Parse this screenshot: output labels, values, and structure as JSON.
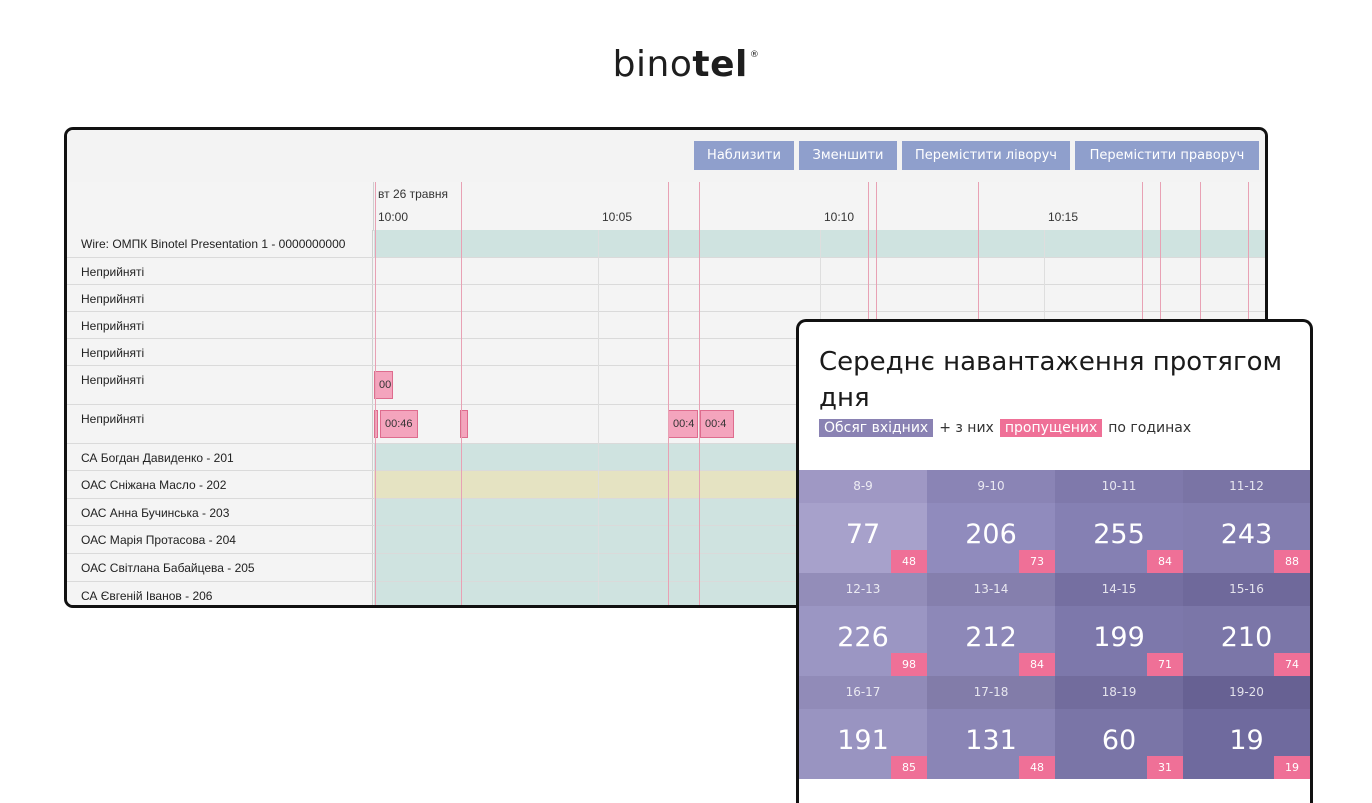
{
  "logo": {
    "thin": "bino",
    "bold": "tel",
    "mark": "®"
  },
  "toolbar": {
    "zoom_in": "Наблизити",
    "zoom_out": "Зменшити",
    "move_left": "Перемістити ліворуч",
    "move_right": "Перемістити праворуч"
  },
  "timeline": {
    "date": "вт 26 травня",
    "times": [
      "10:00",
      "10:05",
      "10:10",
      "10:15"
    ],
    "rows": [
      {
        "label": "Wire: ОМПК Binotel Presentation 1 - 0000000000"
      },
      {
        "label": "Неприйняті"
      },
      {
        "label": "Неприйняті"
      },
      {
        "label": "Неприйняті"
      },
      {
        "label": "Неприйняті"
      },
      {
        "label": "Неприйняті"
      },
      {
        "label": "Неприйняті"
      },
      {
        "label": "СА Богдан Давиденко - 201"
      },
      {
        "label": "ОАС Сніжана Масло - 202"
      },
      {
        "label": "ОАС Анна Бучинська - 203"
      },
      {
        "label": "ОАС Марія Протасова - 204"
      },
      {
        "label": "ОАС Світлана Бабайцева - 205"
      },
      {
        "label": "СА Євгеній Іванов - 206"
      }
    ],
    "calls": {
      "c1": "00",
      "c2": "00:46",
      "c3": "00:4",
      "c4": "00:4"
    },
    "colors": {
      "teal": "#cfe3e0",
      "yellow": "#e5e3c2",
      "missed": "#f4a4bd",
      "line": "#e8a1b4"
    }
  },
  "load": {
    "title": "Середнє навантаження протягом дня",
    "legend_in": "Обсяг вхідних",
    "legend_mid": "+ з них",
    "legend_missed": "пропущених",
    "legend_end": "по годинах",
    "cells": [
      {
        "hour": "8-9",
        "value": "77",
        "missed": "48",
        "color": "#a7a1cb",
        "hcolor": "#9f98c4"
      },
      {
        "hour": "9-10",
        "value": "206",
        "missed": "73",
        "color": "#908bbd",
        "hcolor": "#8a84b5"
      },
      {
        "hour": "10-11",
        "value": "255",
        "missed": "84",
        "color": "#8580b3",
        "hcolor": "#7f79ab"
      },
      {
        "hour": "11-12",
        "value": "243",
        "missed": "88",
        "color": "#837eb0",
        "hcolor": "#7a74a5"
      },
      {
        "hour": "12-13",
        "value": "226",
        "missed": "98",
        "color": "#9b96c3",
        "hcolor": "#938db9"
      },
      {
        "hour": "13-14",
        "value": "212",
        "missed": "84",
        "color": "#8d88b8",
        "hcolor": "#857fad"
      },
      {
        "hour": "14-15",
        "value": "199",
        "missed": "71",
        "color": "#7d78ab",
        "hcolor": "#756fa1"
      },
      {
        "hour": "15-16",
        "value": "210",
        "missed": "74",
        "color": "#7b76a8",
        "hcolor": "#6f699b"
      },
      {
        "hour": "16-17",
        "value": "191",
        "missed": "85",
        "color": "#9994c1",
        "hcolor": "#918bb8"
      },
      {
        "hour": "17-18",
        "value": "131",
        "missed": "48",
        "color": "#8a85b6",
        "hcolor": "#827ca9"
      },
      {
        "hour": "18-19",
        "value": "60",
        "missed": "31",
        "color": "#7a75a7",
        "hcolor": "#726c9d"
      },
      {
        "hour": "19-20",
        "value": "19",
        "missed": "19",
        "color": "#6f6a9e",
        "hcolor": "#676193"
      }
    ]
  }
}
